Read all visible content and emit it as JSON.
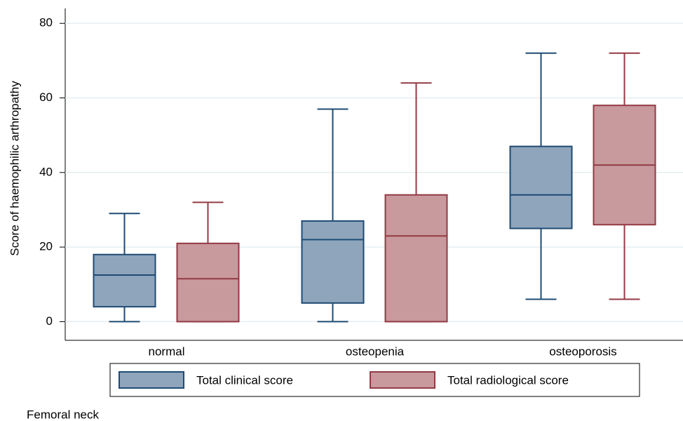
{
  "chart_data": {
    "type": "box",
    "y_label": "Score of haemophilic arthropathy",
    "note": "Femoral neck",
    "categories": [
      "normal",
      "osteopenia",
      "osteoporosis"
    ],
    "series": [
      {
        "name": "Total clinical score",
        "color": "#8ea5bc",
        "edge_color": "#1f4b73",
        "min": [
          0,
          0,
          6
        ],
        "q1": [
          4,
          5,
          25
        ],
        "median": [
          12.5,
          22,
          34
        ],
        "q3": [
          18,
          27,
          47
        ],
        "max": [
          29,
          57,
          72
        ]
      },
      {
        "name": "Total radiological score",
        "color": "#c8999d",
        "edge_color": "#933a44",
        "min": [
          0,
          0,
          6
        ],
        "q1": [
          0,
          0,
          26
        ],
        "median": [
          11.5,
          23,
          42
        ],
        "q3": [
          21,
          34,
          58
        ],
        "max": [
          32,
          64,
          72
        ]
      }
    ],
    "ylim": [
      -5,
      84
    ],
    "yticks": [
      0,
      20,
      40,
      60,
      80
    ],
    "grid": true
  }
}
